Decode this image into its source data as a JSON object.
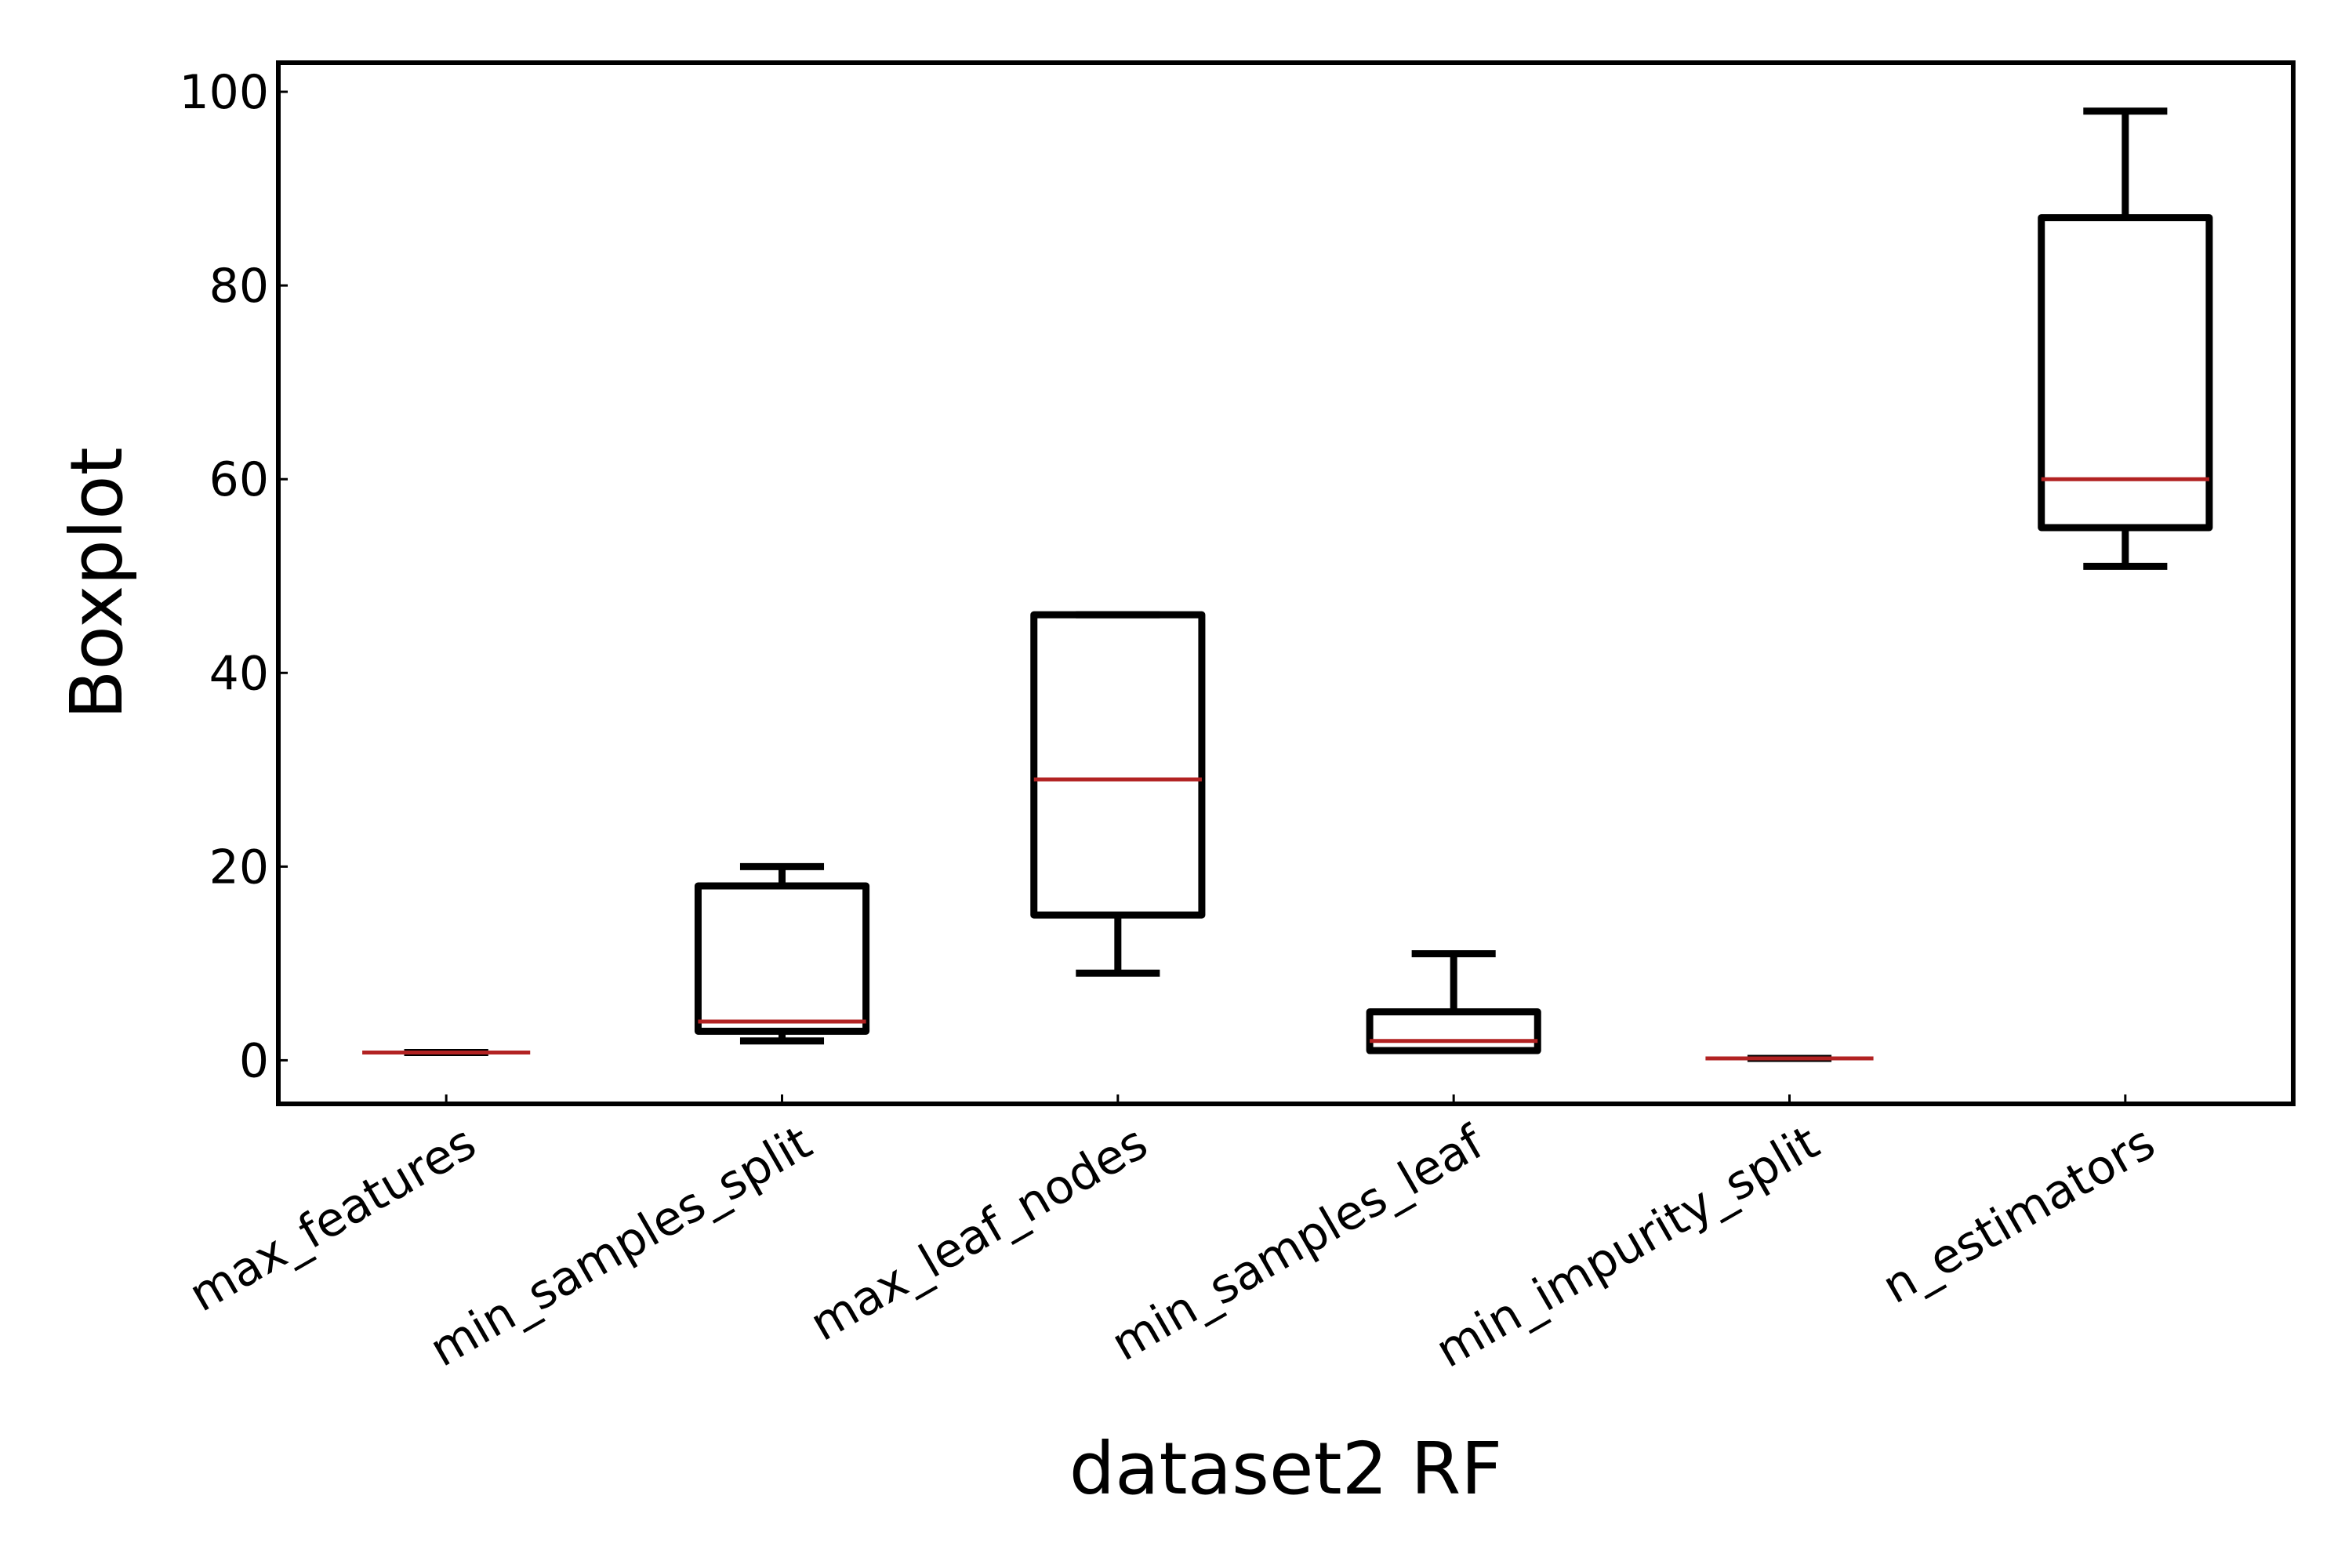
{
  "chart_data": {
    "type": "boxplot",
    "title": "",
    "xlabel": "dataset2 RF",
    "ylabel": "Boxplot",
    "ylim": [
      -4.5,
      103
    ],
    "yticks": [
      0,
      20,
      40,
      60,
      80,
      100
    ],
    "grid": false,
    "colors": {
      "box": "#000000",
      "median": "#b22222"
    },
    "categories": [
      "max_features",
      "min_samples_split",
      "max_leaf_nodes",
      "min_samples_leaf",
      "min_impurity_split",
      "n_estimators"
    ],
    "boxes": [
      {
        "name": "max_features",
        "whisker_low": 0.8,
        "q1": 0.8,
        "median": 0.8,
        "q3": 0.8,
        "whisker_high": 0.8
      },
      {
        "name": "min_samples_split",
        "whisker_low": 2,
        "q1": 3,
        "median": 4,
        "q3": 18,
        "whisker_high": 20
      },
      {
        "name": "max_leaf_nodes",
        "whisker_low": 9,
        "q1": 15,
        "median": 29,
        "q3": 46,
        "whisker_high": 46
      },
      {
        "name": "min_samples_leaf",
        "whisker_low": 1,
        "q1": 1,
        "median": 2,
        "q3": 5,
        "whisker_high": 11
      },
      {
        "name": "min_impurity_split",
        "whisker_low": 0.2,
        "q1": 0.2,
        "median": 0.2,
        "q3": 0.2,
        "whisker_high": 0.2
      },
      {
        "name": "n_estimators",
        "whisker_low": 51,
        "q1": 55,
        "median": 60,
        "q3": 87,
        "whisker_high": 98
      }
    ]
  }
}
